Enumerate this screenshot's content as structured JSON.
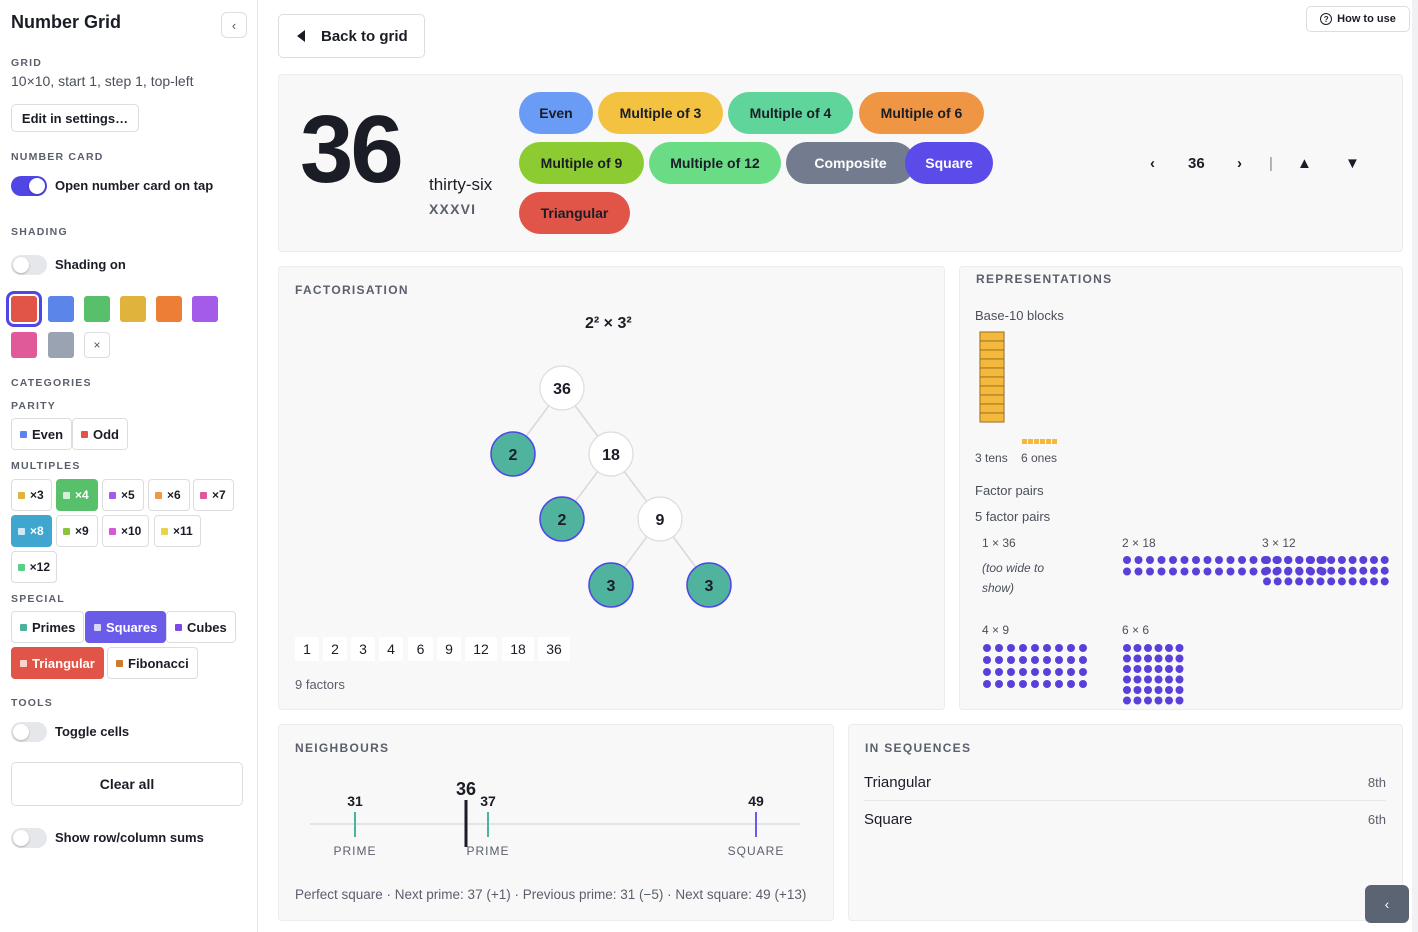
{
  "sidebar": {
    "title": "Number Grid",
    "grid_label": "GRID",
    "grid_desc": "10×10, start 1, step 1, top-left",
    "edit_btn": "Edit in settings…",
    "number_card_label": "NUMBER CARD",
    "open_card_toggle": "Open number card on tap",
    "shading_label": "SHADING",
    "shading_toggle": "Shading on",
    "swatch_colors": [
      "#e05548",
      "#5b85e8",
      "#58c06a",
      "#e0b43c",
      "#ec7f35",
      "#a35be8",
      "#e05a9a",
      "#9aa3b2"
    ],
    "clear_swatch": "×",
    "categories_label": "CATEGORIES",
    "parity_label": "PARITY",
    "parity": [
      {
        "label": "Even",
        "color": "#5b85e8"
      },
      {
        "label": "Odd",
        "color": "#e05548"
      }
    ],
    "multiples_label": "MULTIPLES",
    "multiples": [
      {
        "label": "×3",
        "color": "#e0b43c"
      },
      {
        "label": "×4",
        "color": "#58c06a",
        "active": true
      },
      {
        "label": "×5",
        "color": "#a35be8"
      },
      {
        "label": "×6",
        "color": "#ec9a45"
      },
      {
        "label": "×7",
        "color": "#e05a9a"
      },
      {
        "label": "×8",
        "color": "#3fa6d0",
        "active": true
      },
      {
        "label": "×9",
        "color": "#8ac43c"
      },
      {
        "label": "×10",
        "color": "#d55ad5"
      },
      {
        "label": "×11",
        "color": "#e8d34c"
      },
      {
        "label": "×12",
        "color": "#58d08a"
      }
    ],
    "special_label": "SPECIAL",
    "special": [
      {
        "label": "Primes",
        "color": "#4bb39a"
      },
      {
        "label": "Squares",
        "color": "#6a5be8",
        "active": true
      },
      {
        "label": "Cubes",
        "color": "#7a4be8"
      },
      {
        "label": "Triangular",
        "color": "#e05548",
        "active": true
      },
      {
        "label": "Fibonacci",
        "color": "#d07a2a"
      }
    ],
    "tools_label": "TOOLS",
    "toggle_cells": "Toggle cells",
    "clear_all": "Clear all",
    "row_sums": "Show row/column sums"
  },
  "header": {
    "back": "Back to grid",
    "how": "How to use"
  },
  "card": {
    "number": "36",
    "word": "thirty-six",
    "roman": "XXXVI",
    "tags": [
      {
        "label": "Even",
        "color": "#6b9cf5"
      },
      {
        "label": "Multiple of 3",
        "color": "#f3c240"
      },
      {
        "label": "Multiple of 4",
        "color": "#5fd49b"
      },
      {
        "label": "Multiple of 6",
        "color": "#ef9645"
      },
      {
        "label": "Multiple of 9",
        "color": "#8ccc32"
      },
      {
        "label": "Multiple of 12",
        "color": "#6bdc86"
      },
      {
        "label": "Composite",
        "color": "#737c8e",
        "light": true
      },
      {
        "label": "Square",
        "color": "#5b4be8",
        "light": true
      },
      {
        "label": "Triangular",
        "color": "#e05548"
      }
    ],
    "nav": {
      "prev": "‹",
      "current": "36",
      "next": "›",
      "sep": "|",
      "up": "▲",
      "down": "▼"
    }
  },
  "factorisation": {
    "title": "FACTORISATION",
    "formula": "2² × 3²",
    "nodes": [
      {
        "value": "36",
        "prime": false
      },
      {
        "value": "2",
        "prime": true
      },
      {
        "value": "18",
        "prime": false
      },
      {
        "value": "2",
        "prime": true
      },
      {
        "value": "9",
        "prime": false
      },
      {
        "value": "3",
        "prime": true
      },
      {
        "value": "3",
        "prime": true
      }
    ],
    "factors": [
      "1",
      "2",
      "3",
      "4",
      "6",
      "9",
      "12",
      "18",
      "36"
    ],
    "count": "9 factors"
  },
  "representations": {
    "title": "REPRESENTATIONS",
    "base10": "Base-10 blocks",
    "tens_label": "3 tens",
    "ones_label": "6 ones",
    "factor_pairs": "Factor pairs",
    "pair_count": "5 factor pairs",
    "pairs": [
      "1 × 36",
      "2 × 18",
      "3 × 12",
      "4 × 9",
      "6 × 6"
    ],
    "too_wide": "(too wide to show)"
  },
  "neighbours": {
    "title": "NEIGHBOURS",
    "current": "36",
    "points": [
      {
        "value": "31",
        "tag": "PRIME",
        "color": "#4bb39a"
      },
      {
        "value": "37",
        "tag": "PRIME",
        "color": "#4bb39a"
      },
      {
        "value": "49",
        "tag": "SQUARE",
        "color": "#6a5be8"
      }
    ],
    "summary": "Perfect square · Next prime: 37 (+1) · Previous prime: 31 (−5) · Next square: 49 (+13)"
  },
  "sequences": {
    "title": "IN SEQUENCES",
    "rows": [
      {
        "name": "Triangular",
        "rank": "8th"
      },
      {
        "name": "Square",
        "rank": "6th"
      }
    ]
  },
  "float_btn": "‹"
}
